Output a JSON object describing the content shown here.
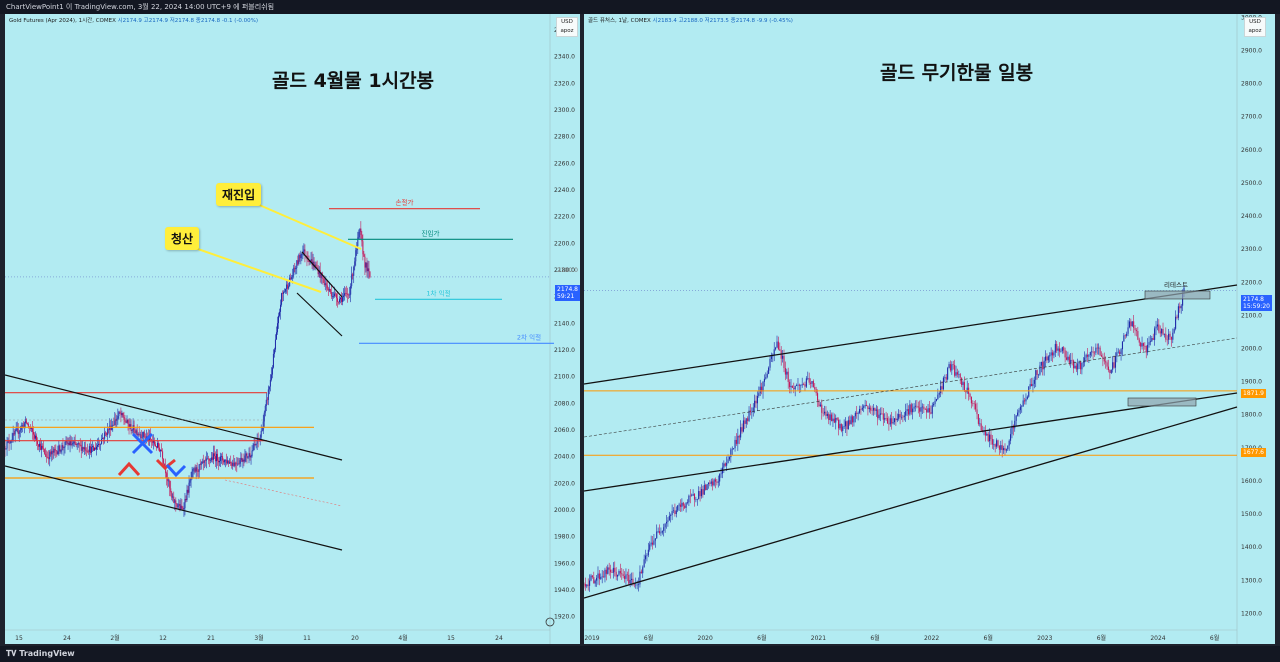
{
  "window": {
    "header_text": "ChartViewPoint1 이 TradingView.com, 3월 22, 2024 14:00 UTC+9 에 퍼블리쉬됨",
    "footer_logo": "TradingView"
  },
  "colors": {
    "panel_bg": "#b2ebf2",
    "candle_up": "#1e2aa8",
    "candle_down": "#c2185b",
    "trend_line": "#111111",
    "orange_level": "#ff9800",
    "red_level": "#e53935",
    "green_level": "#00897b",
    "cyan_level": "#26c6da",
    "blue_level": "#448aff",
    "callout_bg": "#ffee3b",
    "price_tag_blue": "#2962ff",
    "price_tag_orange": "#ff9800"
  },
  "left": {
    "legend_name": "Gold Futures (Apr 2024), 1시간, COMEX",
    "legend_values": "시2174.9  고2174.9  저2174.8  종2174.8  -0.1 (-0.00%)",
    "unit_top": "USD",
    "unit_bottom": "apoz",
    "title": "골드 4월물 1시간봉",
    "callout_reentry": "재진입",
    "callout_close": "청산",
    "label_stop": "손절가",
    "label_entry": "진입가",
    "label_tp1": "1차 익절",
    "label_tp2": "2차 익절",
    "price_tag": "2174.8",
    "price_tag_time": "59:21",
    "price_ghost": "2180.0"
  },
  "right": {
    "legend_name": "골드 퓨처스, 1날, COMEX",
    "legend_values": "시2183.4  고2188.0  저2173.5  종2174.8  -9.9 (-0.45%)",
    "unit_top": "USD",
    "unit_bottom": "apoz",
    "title": "골드 무기한물 일봉",
    "label_retest": "리테스트",
    "price_tag": "2174.8",
    "price_tag_time": "15:59:20",
    "level_tag_1": "1871.9",
    "level_tag_2": "1677.6"
  },
  "chart_data": [
    {
      "type": "candlestick",
      "title": "골드 4월물 1시간봉",
      "series_name": "Gold Futures (Apr 2024), 1시간, COMEX",
      "y_ticks": [
        1920,
        1940,
        1960,
        1980,
        2000,
        2020,
        2040,
        2060,
        2080,
        2100,
        2120,
        2140,
        2160,
        2180,
        2200,
        2220,
        2240,
        2260,
        2280,
        2300,
        2320,
        2340,
        2360
      ],
      "x_ticks": [
        "15",
        "24",
        "2월",
        "12",
        "21",
        "3월",
        "11",
        "20",
        "4월",
        "15",
        "24"
      ],
      "ylim": [
        1910,
        2372
      ],
      "close_path": [
        [
          0,
          2048
        ],
        [
          0.04,
          2066
        ],
        [
          0.08,
          2040
        ],
        [
          0.12,
          2050
        ],
        [
          0.17,
          2045
        ],
        [
          0.22,
          2072
        ],
        [
          0.24,
          2062
        ],
        [
          0.27,
          2055
        ],
        [
          0.3,
          2045
        ],
        [
          0.32,
          2008
        ],
        [
          0.34,
          2000
        ],
        [
          0.36,
          2028
        ],
        [
          0.4,
          2040
        ],
        [
          0.44,
          2035
        ],
        [
          0.47,
          2042
        ],
        [
          0.49,
          2055
        ],
        [
          0.51,
          2100
        ],
        [
          0.53,
          2160
        ],
        [
          0.55,
          2175
        ],
        [
          0.57,
          2195
        ],
        [
          0.6,
          2180
        ],
        [
          0.62,
          2165
        ],
        [
          0.64,
          2158
        ],
        [
          0.66,
          2162
        ],
        [
          0.68,
          2210
        ],
        [
          0.69,
          2185
        ],
        [
          0.7,
          2174.8
        ]
      ],
      "levels": [
        {
          "name": "손절가",
          "value": 2226,
          "color": "red"
        },
        {
          "name": "진입가",
          "value": 2203,
          "color": "green"
        },
        {
          "name": "1차 익절",
          "value": 2158,
          "color": "cyan"
        },
        {
          "name": "2차 익절",
          "value": 2125,
          "color": "blue"
        },
        {
          "name": "",
          "value": 2088,
          "color": "red"
        },
        {
          "name": "",
          "value": 2062,
          "color": "orange"
        },
        {
          "name": "",
          "value": 2052,
          "color": "red"
        },
        {
          "name": "",
          "value": 2024,
          "color": "orange"
        }
      ],
      "last_price": 2174.8
    },
    {
      "type": "candlestick",
      "title": "골드 무기한물 일봉",
      "series_name": "골드 퓨처스, 1날, COMEX",
      "y_ticks": [
        1200,
        1300,
        1400,
        1500,
        1600,
        1700,
        1800,
        1900,
        2000,
        2100,
        2200,
        2300,
        2400,
        2500,
        2600,
        2700,
        2800,
        2900,
        3000
      ],
      "x_ticks": [
        "2019",
        "6월",
        "2020",
        "6월",
        "2021",
        "6월",
        "2022",
        "6월",
        "2023",
        "6월",
        "2024",
        "6월"
      ],
      "ylim": [
        1150,
        3010
      ],
      "close_path": [
        [
          0,
          1290
        ],
        [
          0.04,
          1330
        ],
        [
          0.08,
          1290
        ],
        [
          0.1,
          1410
        ],
        [
          0.13,
          1500
        ],
        [
          0.17,
          1560
        ],
        [
          0.2,
          1600
        ],
        [
          0.23,
          1730
        ],
        [
          0.27,
          1900
        ],
        [
          0.29,
          2020
        ],
        [
          0.31,
          1880
        ],
        [
          0.34,
          1900
        ],
        [
          0.36,
          1800
        ],
        [
          0.39,
          1760
        ],
        [
          0.42,
          1830
        ],
        [
          0.46,
          1780
        ],
        [
          0.49,
          1820
        ],
        [
          0.52,
          1810
        ],
        [
          0.55,
          1950
        ],
        [
          0.58,
          1850
        ],
        [
          0.6,
          1740
        ],
        [
          0.63,
          1690
        ],
        [
          0.65,
          1800
        ],
        [
          0.68,
          1930
        ],
        [
          0.71,
          2010
        ],
        [
          0.74,
          1940
        ],
        [
          0.77,
          2000
        ],
        [
          0.79,
          1930
        ],
        [
          0.82,
          2080
        ],
        [
          0.84,
          1990
        ],
        [
          0.86,
          2060
        ],
        [
          0.88,
          2030
        ],
        [
          0.9,
          2174.8
        ]
      ],
      "levels": [
        {
          "name": "",
          "value": 1871.9,
          "color": "orange"
        },
        {
          "name": "",
          "value": 1677.6,
          "color": "orange"
        }
      ],
      "last_price": 2174.8
    }
  ]
}
